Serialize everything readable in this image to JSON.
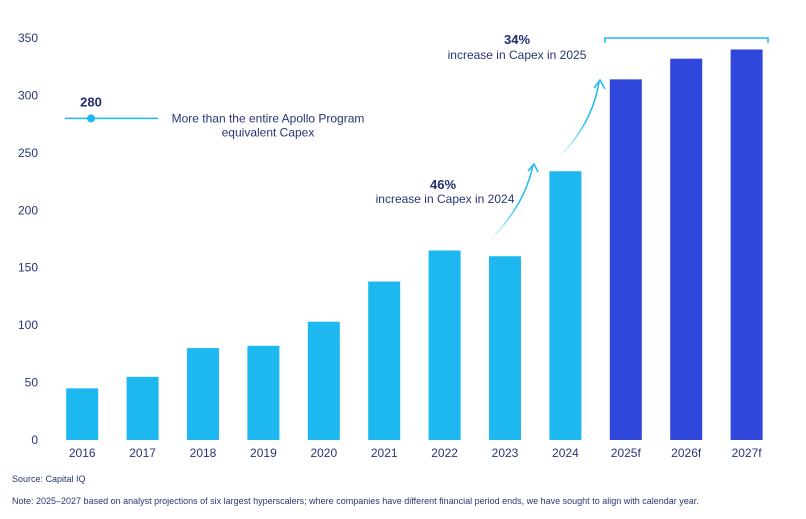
{
  "chart_data": {
    "type": "bar",
    "categories": [
      "2016",
      "2017",
      "2018",
      "2019",
      "2020",
      "2021",
      "2022",
      "2023",
      "2024",
      "2025f",
      "2026f",
      "2027f"
    ],
    "values": [
      45,
      55,
      80,
      82,
      103,
      138,
      165,
      160,
      234,
      314,
      332,
      340
    ],
    "forecast": [
      false,
      false,
      false,
      false,
      false,
      false,
      false,
      false,
      false,
      true,
      true,
      true
    ],
    "ylim": [
      0,
      350
    ],
    "yticks": [
      0,
      50,
      100,
      150,
      200,
      250,
      300,
      350
    ],
    "grid": false,
    "colors": {
      "actual": "#1eb8f0",
      "forecast": "#3047dc",
      "text": "#2a3575"
    },
    "annotations": {
      "apollo": {
        "value": 280,
        "value_label": "280",
        "line1": "More than the entire Apollo Program",
        "line2": "equivalent Capex"
      },
      "increase_2024": {
        "pct": "46%",
        "text": "increase in Capex in 2024"
      },
      "increase_2025": {
        "pct": "34%",
        "text": "increase in Capex in 2025"
      }
    }
  },
  "footer": {
    "source": "Source: Capital IQ",
    "note": "Note: 2025–2027 based on analyst projections of six largest hyperscalers; where companies have different financial period ends, we have sought to align with calendar year."
  }
}
